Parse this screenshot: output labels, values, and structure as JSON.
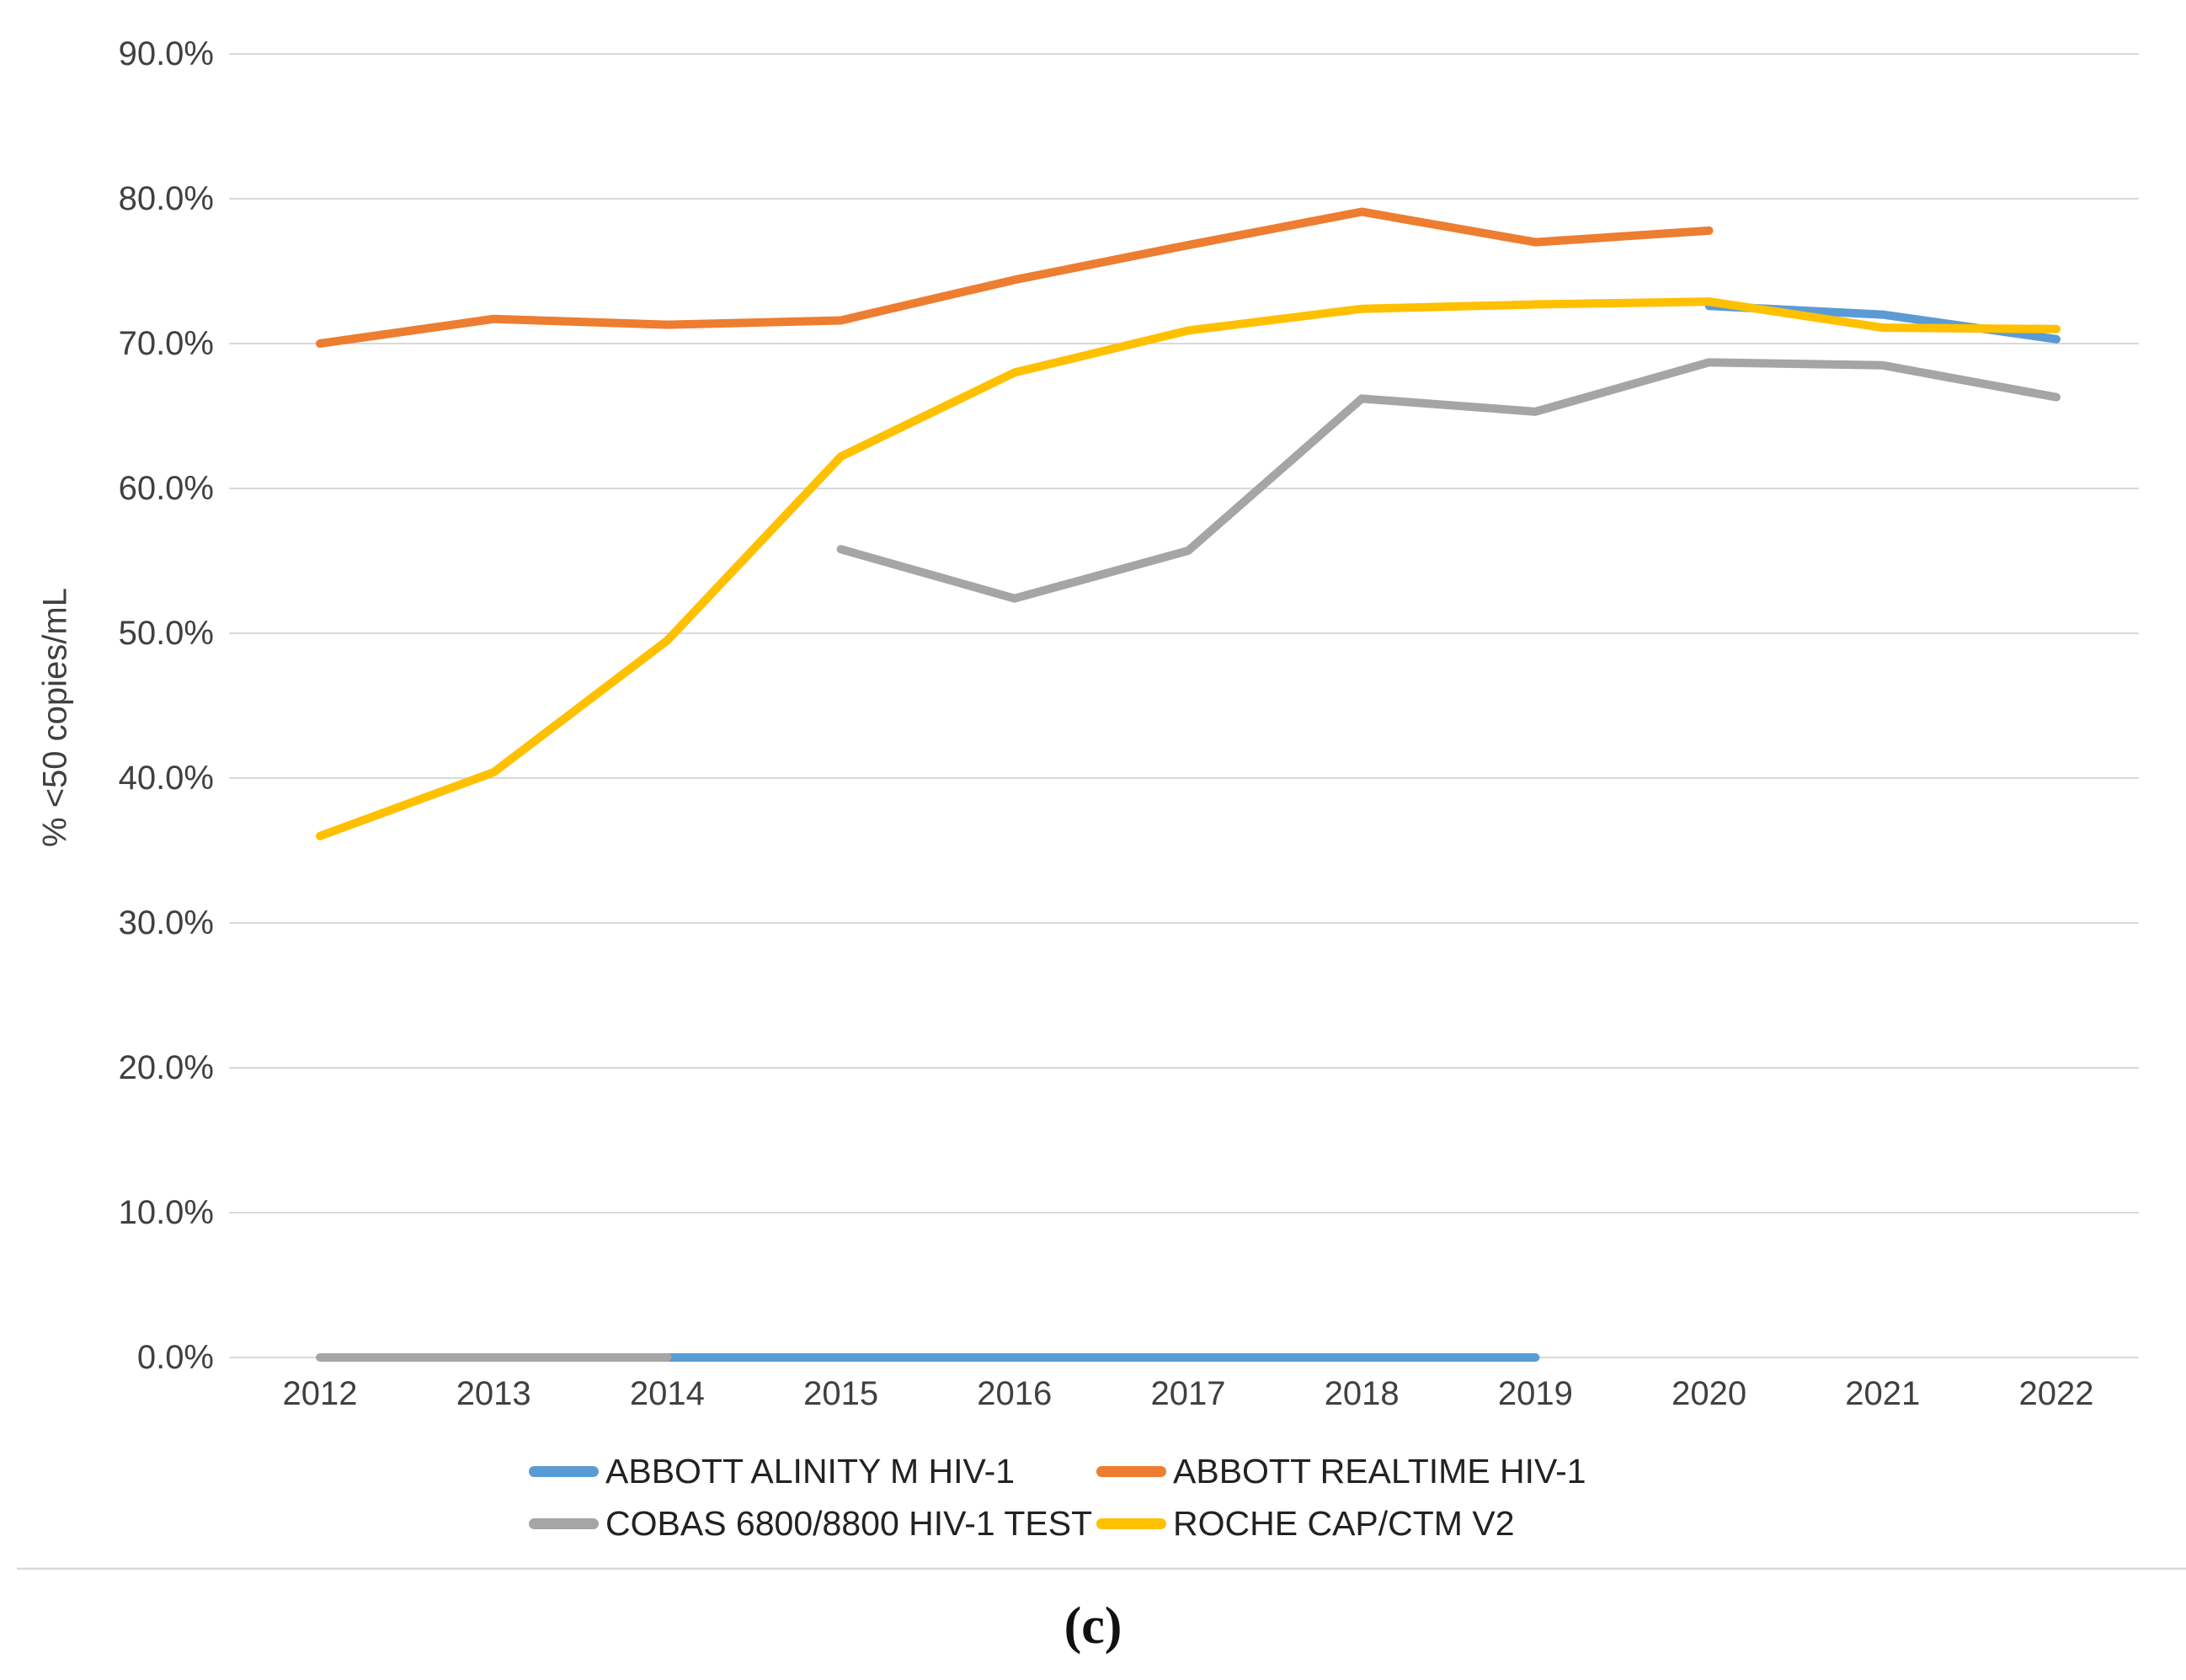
{
  "caption": "(c)",
  "chart_data": {
    "type": "line",
    "title": "",
    "xlabel": "",
    "ylabel": "% <50 copies/mL",
    "grid": true,
    "legend_position": "bottom",
    "x_start": 2012,
    "categories": [
      "2012",
      "2013",
      "2014",
      "2015",
      "2016",
      "2017",
      "2018",
      "2019",
      "2020",
      "2021",
      "2022"
    ],
    "y_axis": {
      "min": 0,
      "max": 90,
      "tick_step": 10,
      "ticks": [
        {
          "value": 90,
          "label": "90.0%"
        },
        {
          "value": 80,
          "label": "80.0%"
        },
        {
          "value": 70,
          "label": "70.0%"
        },
        {
          "value": 60,
          "label": "60.0%"
        },
        {
          "value": 50,
          "label": "50.0%"
        },
        {
          "value": 40,
          "label": "40.0%"
        },
        {
          "value": 30,
          "label": "30.0%"
        },
        {
          "value": 20,
          "label": "20.0%"
        },
        {
          "value": 10,
          "label": "10.0%"
        },
        {
          "value": 0,
          "label": "0.0%"
        }
      ]
    },
    "series": [
      {
        "name": "ABBOTT ALINITY M HIV-1",
        "color": "#5B9BD5",
        "segments": [
          {
            "x": [
              2014,
              2015,
              2016,
              2017,
              2018,
              2019
            ],
            "y": [
              0,
              0,
              0,
              0,
              0,
              0
            ]
          },
          {
            "x": [
              2020,
              2021,
              2022
            ],
            "y": [
              72.6,
              72.0,
              70.3
            ]
          }
        ]
      },
      {
        "name": "ABBOTT REALTIME HIV-1",
        "color": "#ED7D31",
        "segments": [
          {
            "x": [
              2012,
              2013,
              2014,
              2015,
              2016,
              2017,
              2018,
              2019,
              2020
            ],
            "y": [
              70.0,
              71.7,
              71.3,
              71.6,
              74.4,
              76.8,
              79.1,
              77.0,
              77.8
            ]
          }
        ]
      },
      {
        "name": "COBAS 6800/8800 HIV-1 TEST",
        "color": "#A5A5A5",
        "segments": [
          {
            "x": [
              2012,
              2013,
              2014
            ],
            "y": [
              0,
              0,
              0
            ]
          },
          {
            "x": [
              2015,
              2016,
              2017,
              2018,
              2019,
              2020,
              2021,
              2022
            ],
            "y": [
              55.8,
              52.4,
              55.7,
              66.2,
              65.3,
              68.7,
              68.5,
              66.3
            ]
          }
        ]
      },
      {
        "name": "ROCHE CAP/CTM V2",
        "color": "#FFC000",
        "segments": [
          {
            "x": [
              2012,
              2013,
              2014,
              2015,
              2016,
              2017,
              2018,
              2019,
              2020,
              2021,
              2022
            ],
            "y": [
              36.0,
              40.4,
              49.5,
              62.2,
              68.0,
              70.9,
              72.4,
              72.7,
              72.9,
              71.1,
              71.0
            ]
          }
        ]
      }
    ]
  }
}
